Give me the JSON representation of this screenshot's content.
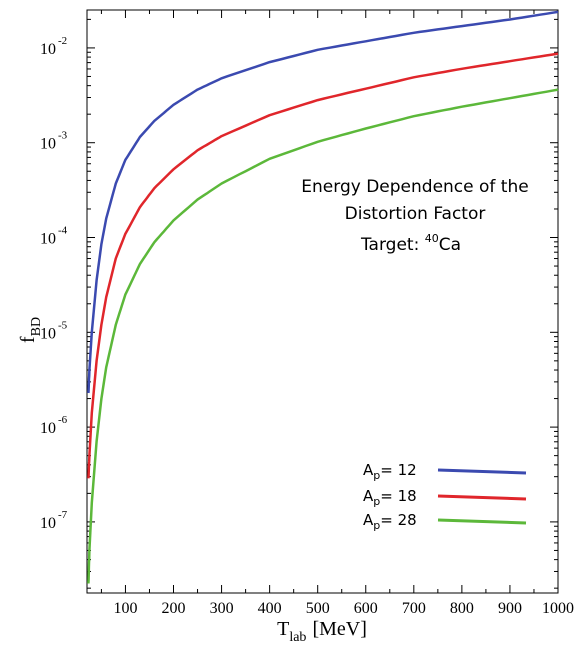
{
  "chart_data": {
    "type": "line",
    "xlabel": {
      "main": "T",
      "sub": "lab",
      "unit": "[MeV]"
    },
    "ylabel": {
      "main": "f",
      "sub": "BD"
    },
    "xlim": [
      20,
      1000
    ],
    "ylim_log10": [
      -7.75,
      -1.6
    ],
    "y_scale": "log",
    "grid": false,
    "x_ticks": [
      {
        "value": 100,
        "label": "100"
      },
      {
        "value": 200,
        "label": "200"
      },
      {
        "value": 300,
        "label": "300"
      },
      {
        "value": 400,
        "label": "400"
      },
      {
        "value": 500,
        "label": "500"
      },
      {
        "value": 600,
        "label": "600"
      },
      {
        "value": 700,
        "label": "700"
      },
      {
        "value": 800,
        "label": "800"
      },
      {
        "value": 900,
        "label": "900"
      },
      {
        "value": 1000,
        "label": "1000"
      }
    ],
    "y_ticks": [
      {
        "exponent": -2,
        "base": "10",
        "exp_label": "-2"
      },
      {
        "exponent": -3,
        "base": "10",
        "exp_label": "-3"
      },
      {
        "exponent": -4,
        "base": "10",
        "exp_label": "-4"
      },
      {
        "exponent": -5,
        "base": "10",
        "exp_label": "-5"
      },
      {
        "exponent": -6,
        "base": "10",
        "exp_label": "-6"
      },
      {
        "exponent": -7,
        "base": "10",
        "exp_label": "-7"
      }
    ],
    "annotation": {
      "line1": "Energy Dependence of the",
      "line2": "Distortion Factor",
      "line3_prefix": "Target: ",
      "line3_sup": "40",
      "line3_suffix": "Ca"
    },
    "legend_position": "bottom-right",
    "series": [
      {
        "name": "12",
        "label_main": "A",
        "label_sub": "p",
        "label_rest": "= 12",
        "color": "#3b4ab0",
        "points": [
          [
            23,
            -5.64
          ],
          [
            25,
            -5.4
          ],
          [
            30,
            -5.0
          ],
          [
            40,
            -4.45
          ],
          [
            50,
            -4.07
          ],
          [
            60,
            -3.8
          ],
          [
            80,
            -3.43
          ],
          [
            100,
            -3.18
          ],
          [
            130,
            -2.94
          ],
          [
            160,
            -2.77
          ],
          [
            200,
            -2.6
          ],
          [
            250,
            -2.44
          ],
          [
            300,
            -2.32
          ],
          [
            400,
            -2.15
          ],
          [
            500,
            -2.02
          ],
          [
            600,
            -1.93
          ],
          [
            700,
            -1.84
          ],
          [
            800,
            -1.77
          ],
          [
            900,
            -1.7
          ],
          [
            1000,
            -1.62
          ]
        ]
      },
      {
        "name": "18",
        "label_main": "A",
        "label_sub": "p",
        "label_rest": "= 18",
        "color": "#e0262b",
        "points": [
          [
            23,
            -6.54
          ],
          [
            25,
            -6.3
          ],
          [
            30,
            -5.85
          ],
          [
            40,
            -5.3
          ],
          [
            50,
            -4.92
          ],
          [
            60,
            -4.63
          ],
          [
            80,
            -4.22
          ],
          [
            100,
            -3.96
          ],
          [
            130,
            -3.68
          ],
          [
            160,
            -3.48
          ],
          [
            200,
            -3.28
          ],
          [
            250,
            -3.08
          ],
          [
            300,
            -2.93
          ],
          [
            400,
            -2.71
          ],
          [
            500,
            -2.55
          ],
          [
            600,
            -2.43
          ],
          [
            700,
            -2.31
          ],
          [
            800,
            -2.22
          ],
          [
            900,
            -2.14
          ],
          [
            1000,
            -2.06
          ]
        ]
      },
      {
        "name": "28",
        "label_main": "A",
        "label_sub": "p",
        "label_rest": "= 28",
        "color": "#5cb83a",
        "points": [
          [
            23,
            -7.65
          ],
          [
            25,
            -7.3
          ],
          [
            30,
            -6.8
          ],
          [
            40,
            -6.15
          ],
          [
            50,
            -5.7
          ],
          [
            60,
            -5.37
          ],
          [
            80,
            -4.92
          ],
          [
            100,
            -4.6
          ],
          [
            130,
            -4.28
          ],
          [
            160,
            -4.05
          ],
          [
            200,
            -3.82
          ],
          [
            250,
            -3.6
          ],
          [
            300,
            -3.43
          ],
          [
            400,
            -3.17
          ],
          [
            500,
            -2.99
          ],
          [
            600,
            -2.85
          ],
          [
            700,
            -2.72
          ],
          [
            800,
            -2.62
          ],
          [
            900,
            -2.53
          ],
          [
            1000,
            -2.44
          ]
        ]
      }
    ]
  }
}
